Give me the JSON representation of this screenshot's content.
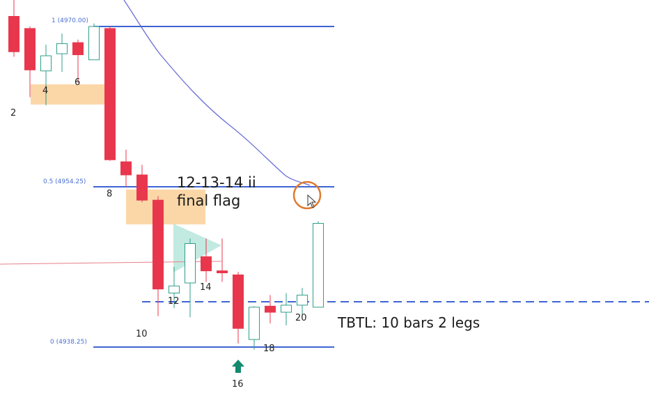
{
  "chart_data": {
    "type": "candlestick",
    "colors": {
      "bull_body": "#ffffff",
      "bull_border": "#2f9e8a",
      "bear": "#e8374d",
      "fib_line": "#3d64d4",
      "ema": "#6a6fd6",
      "price_line": "#e57f8a",
      "highlight_box": "#f9c98b",
      "triangle": "#8fd9c9",
      "arrow": "#138a6e",
      "circle": "#e07a2f"
    },
    "fib_levels": [
      {
        "label": "1 (4970.00)",
        "price": 4970.0
      },
      {
        "label": "0.5 (4954.25)",
        "price": 4954.25
      },
      {
        "label": "0 (4938.25)",
        "price": 4938.25
      }
    ],
    "breakout_line_price": 4941.25,
    "annotations": {
      "final_flag_line1": "12-13-14 ii",
      "final_flag_line2": "final flag",
      "tbtl": "TBTL: 10 bars 2 legs"
    },
    "bar_numbers": [
      "2",
      "4",
      "6",
      "8",
      "10",
      "12",
      "14",
      "16",
      "18",
      "20"
    ],
    "candles": [
      {
        "idx": 1,
        "open": 4971.0,
        "high": 4974.0,
        "low": 4967.0,
        "close": 4967.5
      },
      {
        "idx": 2,
        "open": 4969.8,
        "high": 4970.0,
        "low": 4963.0,
        "close": 4965.7
      },
      {
        "idx": 3,
        "open": 4965.6,
        "high": 4968.2,
        "low": 4962.2,
        "close": 4967.1
      },
      {
        "idx": 4,
        "open": 4967.3,
        "high": 4969.3,
        "low": 4965.5,
        "close": 4968.3
      },
      {
        "idx": 5,
        "open": 4968.4,
        "high": 4968.7,
        "low": 4964.4,
        "close": 4967.2
      },
      {
        "idx": 6,
        "open": 4966.7,
        "high": 4970.3,
        "low": 4966.7,
        "close": 4970.0
      },
      {
        "idx": 7,
        "open": 4969.8,
        "high": 4970.0,
        "low": 4956.7,
        "close": 4956.8
      },
      {
        "idx": 8,
        "open": 4956.6,
        "high": 4957.8,
        "low": 4954.1,
        "close": 4955.3
      },
      {
        "idx": 9,
        "open": 4955.3,
        "high": 4956.3,
        "low": 4952.6,
        "close": 4952.8
      },
      {
        "idx": 10,
        "open": 4952.8,
        "high": 4953.2,
        "low": 4941.3,
        "close": 4944.0
      },
      {
        "idx": 11,
        "open": 4943.6,
        "high": 4946.2,
        "low": 4942.1,
        "close": 4944.3
      },
      {
        "idx": 12,
        "open": 4944.6,
        "high": 4949.0,
        "low": 4941.2,
        "close": 4948.5
      },
      {
        "idx": 13,
        "open": 4947.2,
        "high": 4949.0,
        "low": 4944.7,
        "close": 4945.8
      },
      {
        "idx": 14,
        "open": 4945.8,
        "high": 4949.0,
        "low": 4944.7,
        "close": 4945.6
      },
      {
        "idx": 15,
        "open": 4945.4,
        "high": 4945.7,
        "low": 4938.6,
        "close": 4940.1
      },
      {
        "idx": 16,
        "open": 4939.0,
        "high": 4942.3,
        "low": 4938.0,
        "close": 4942.2
      },
      {
        "idx": 17,
        "open": 4942.3,
        "high": 4943.4,
        "low": 4940.6,
        "close": 4941.7
      },
      {
        "idx": 18,
        "open": 4941.7,
        "high": 4943.6,
        "low": 4940.4,
        "close": 4942.4
      },
      {
        "idx": 19,
        "open": 4942.4,
        "high": 4944.1,
        "low": 4941.2,
        "close": 4943.4
      },
      {
        "idx": 20,
        "open": 4942.2,
        "high": 4950.7,
        "low": 4942.2,
        "close": 4950.5
      }
    ]
  }
}
